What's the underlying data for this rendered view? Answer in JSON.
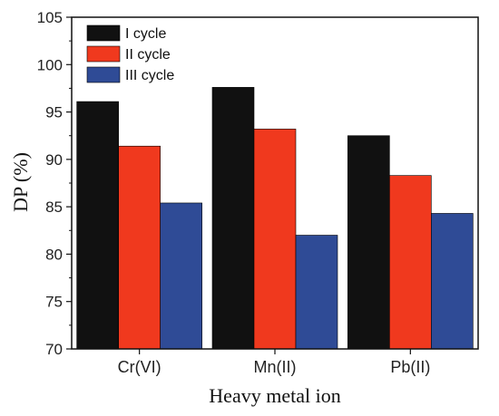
{
  "chart_data": {
    "type": "bar",
    "title": "",
    "xlabel": "Heavy metal ion",
    "ylabel": "DP (%)",
    "categories": [
      "Cr(VI)",
      "Mn(II)",
      "Pb(II)"
    ],
    "series": [
      {
        "name": "I cycle",
        "values": [
          96.1,
          97.6,
          92.5
        ],
        "color": "#111111"
      },
      {
        "name": "II cycle",
        "values": [
          91.4,
          93.2,
          88.3
        ],
        "color": "#f0391e"
      },
      {
        "name": "III cycle",
        "values": [
          85.4,
          82.0,
          84.3
        ],
        "color": "#2f4b96"
      }
    ],
    "ylim": [
      70,
      105
    ],
    "yticks": [
      70,
      75,
      80,
      85,
      90,
      95,
      100,
      105
    ],
    "grid": false,
    "legend_position": "top-left"
  }
}
